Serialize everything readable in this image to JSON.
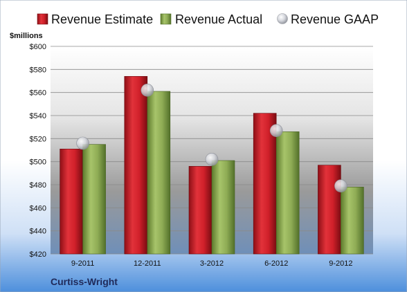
{
  "chart_data": {
    "type": "bar",
    "unit_label": "$millions",
    "company": "Curtiss-Wright",
    "categories": [
      "9-2011",
      "12-2011",
      "3-2012",
      "6-2012",
      "9-2012"
    ],
    "series": [
      {
        "name": "Revenue Estimate",
        "type": "bar",
        "values": [
          511,
          574,
          496,
          542,
          497
        ],
        "color": "#d0202a"
      },
      {
        "name": "Revenue Actual",
        "type": "bar",
        "values": [
          515,
          561,
          501,
          526,
          478
        ],
        "color": "#8fac55"
      },
      {
        "name": "Revenue GAAP",
        "type": "marker",
        "values": [
          516,
          562,
          502,
          527,
          479
        ],
        "color": "#c9ccd3"
      }
    ],
    "ylim": [
      420,
      600
    ],
    "y_ticks": [
      "$420",
      "$440",
      "$460",
      "$480",
      "$500",
      "$520",
      "$540",
      "$560",
      "$580",
      "$600"
    ],
    "y_tick_values": [
      420,
      440,
      460,
      480,
      500,
      520,
      540,
      560,
      580,
      600
    ],
    "grid": true,
    "legend_position": "top"
  }
}
